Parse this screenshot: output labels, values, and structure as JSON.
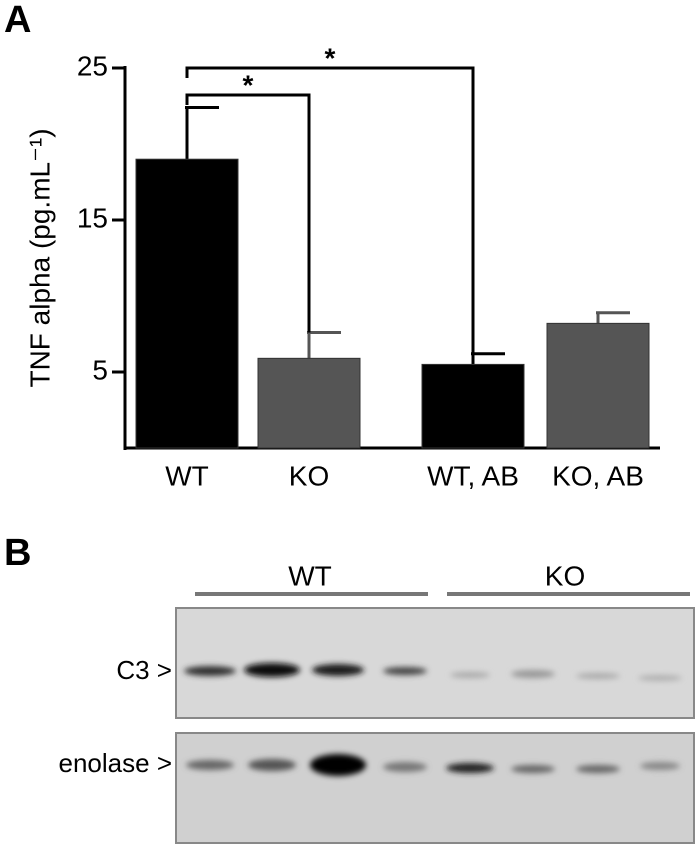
{
  "panel_labels": [
    "A",
    "B"
  ],
  "chart_data": {
    "type": "bar",
    "ylabel": "TNF alpha (pg.mL⁻¹)",
    "categories": [
      "WT",
      "KO",
      "WT, AB",
      "KO, AB"
    ],
    "values": [
      19.0,
      5.9,
      5.5,
      8.2
    ],
    "errors": [
      3.4,
      1.7,
      0.7,
      0.7
    ],
    "colors": [
      "#000000",
      "#555555",
      "#000000",
      "#555555"
    ],
    "ylim": [
      0,
      25
    ],
    "yticks": [
      5,
      15,
      25
    ],
    "annotations": [
      {
        "label": "*",
        "from": 0,
        "to": 1
      },
      {
        "label": "*",
        "from": 0,
        "to": 2
      }
    ]
  },
  "blot": {
    "groups": [
      "WT",
      "KO"
    ],
    "rows": [
      "C3 >",
      "enolase >"
    ]
  }
}
